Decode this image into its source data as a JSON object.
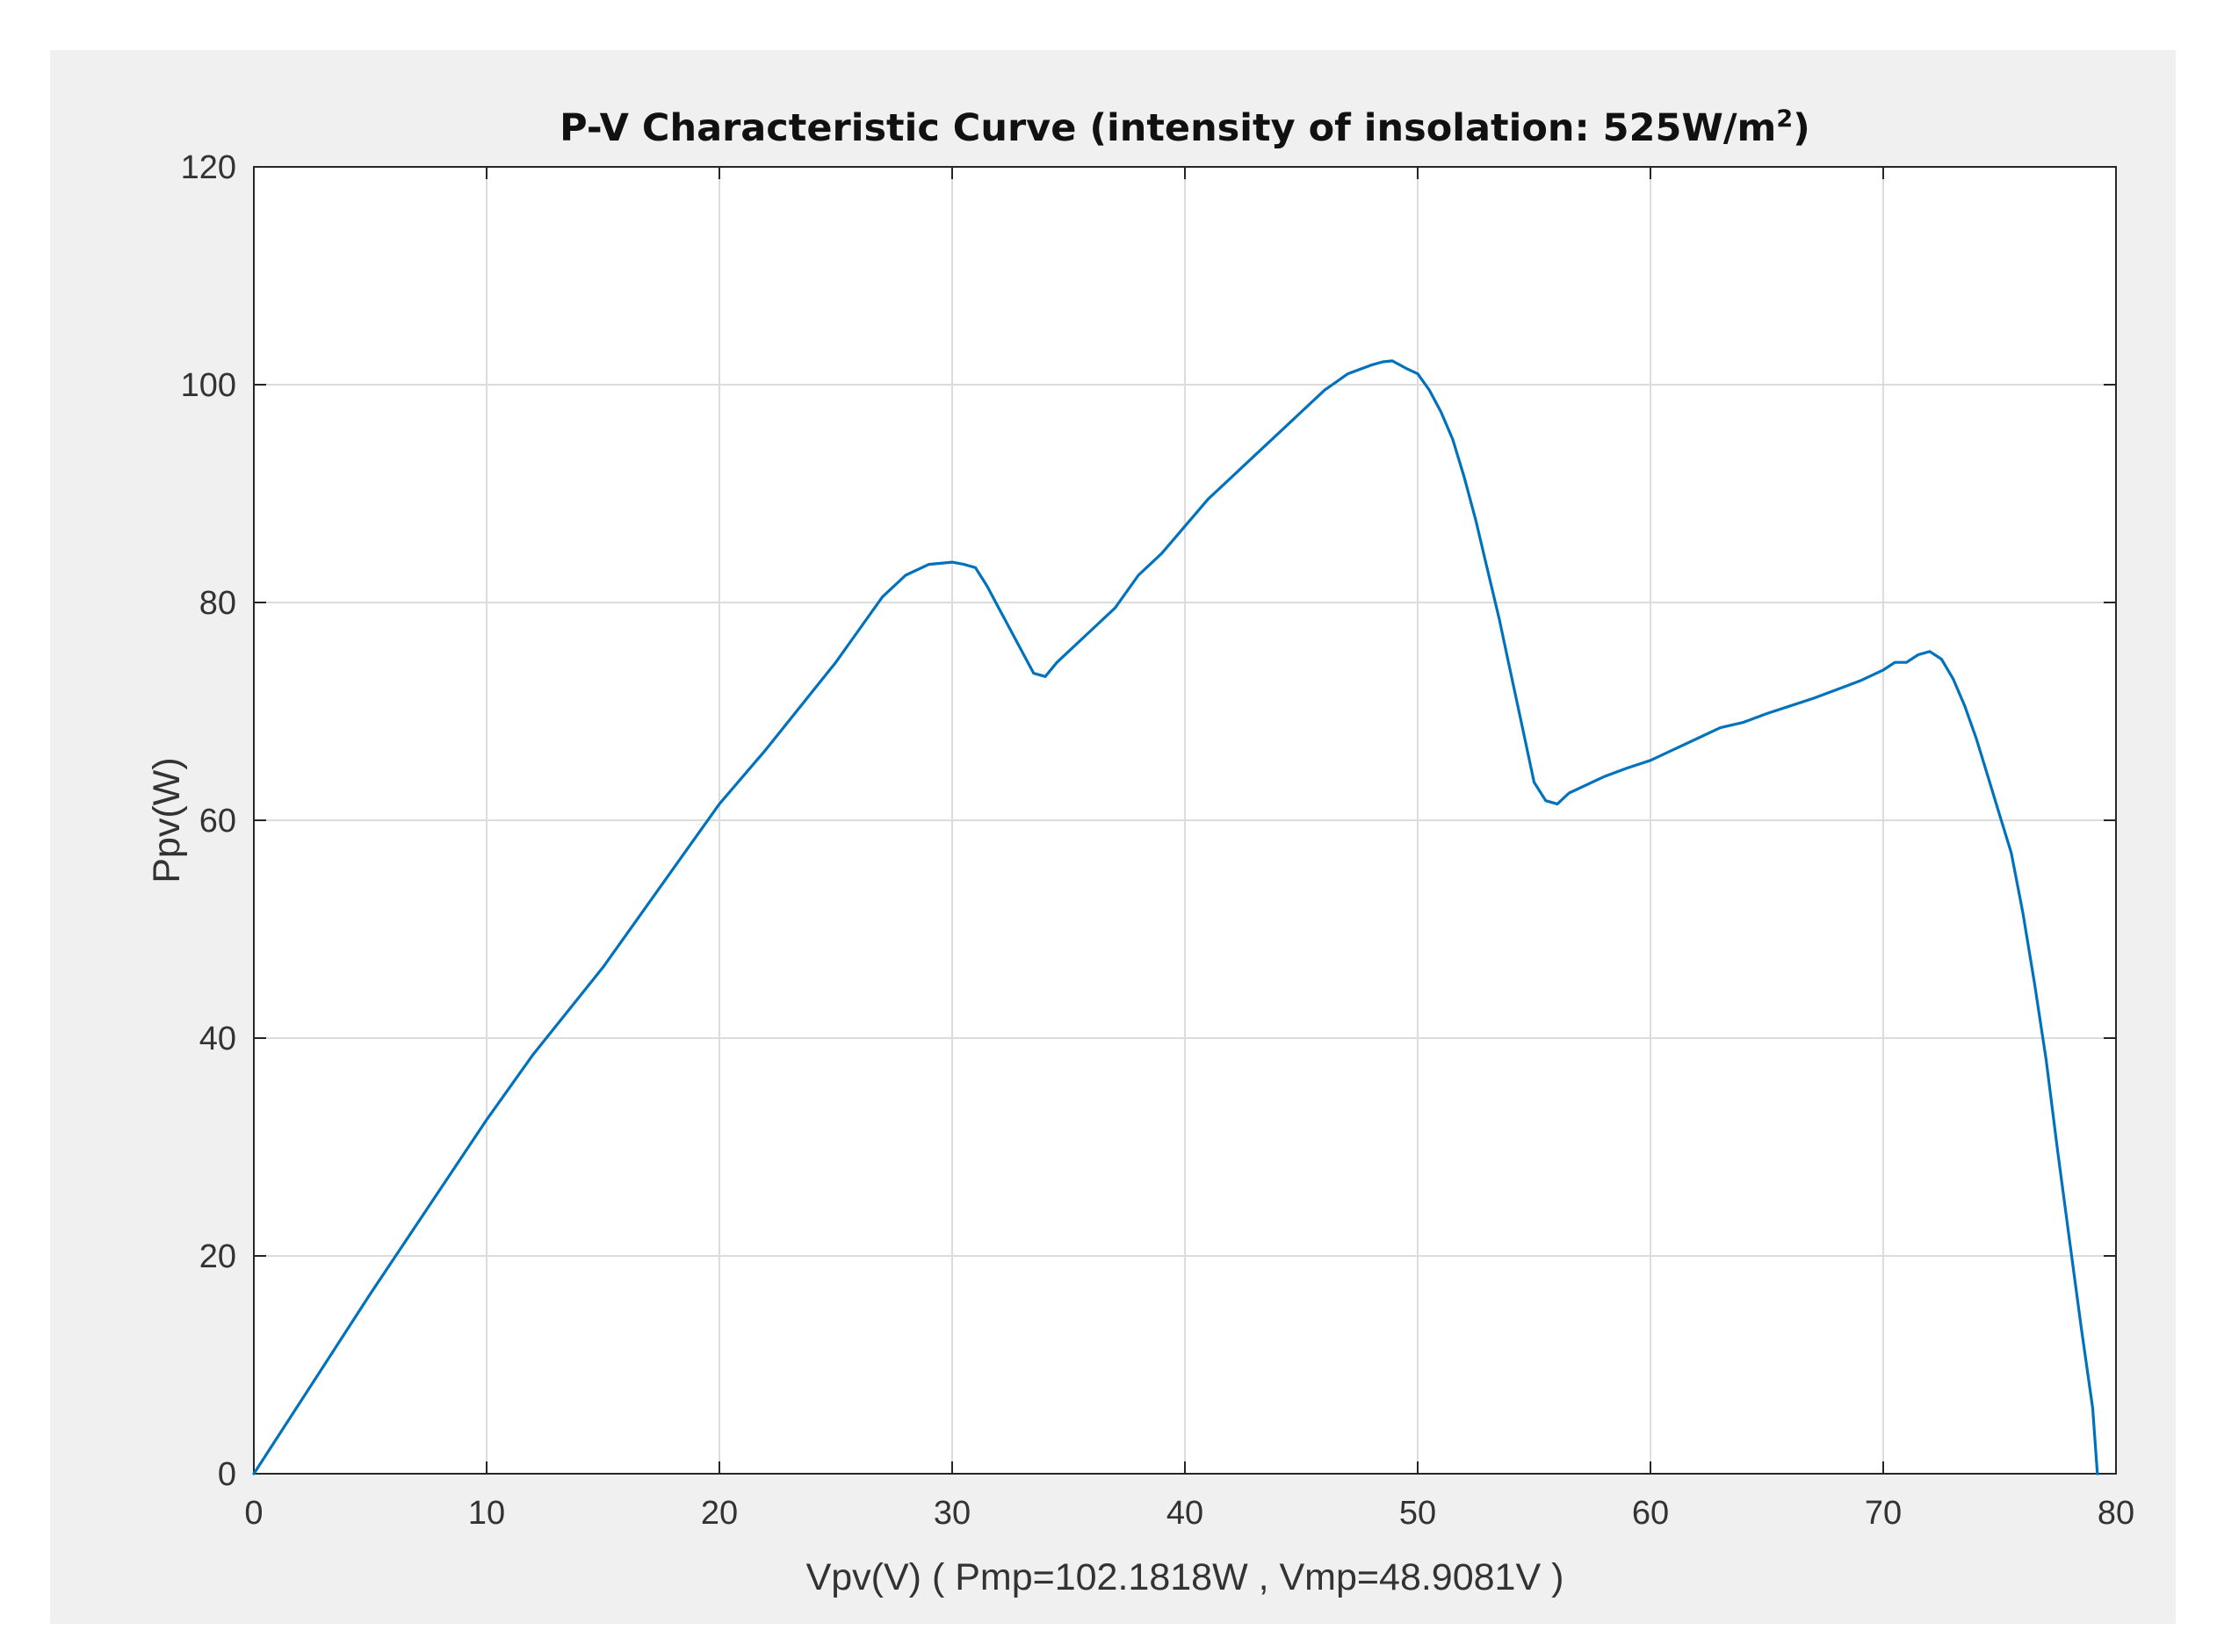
{
  "chart_data": {
    "type": "line",
    "title": "P-V Characteristic Curve (intensity of insolation: 525W/m",
    "title_superscript": "2",
    "title_close": ")",
    "xlabel": "Vpv(V) ( Pmp=102.1818W , Vmp=48.9081V )",
    "ylabel": "Ppv(W)",
    "xlim": [
      0,
      80
    ],
    "ylim": [
      0,
      120
    ],
    "xticks": [
      0,
      10,
      20,
      30,
      40,
      50,
      60,
      70,
      80
    ],
    "yticks": [
      0,
      20,
      40,
      60,
      80,
      100,
      120
    ],
    "xtick_labels": [
      "0",
      "10",
      "20",
      "30",
      "40",
      "50",
      "60",
      "70",
      "80"
    ],
    "ytick_labels": [
      "0",
      "20",
      "40",
      "60",
      "80",
      "100",
      "120"
    ],
    "grid": true,
    "line_color": "#0072bd",
    "series": [
      {
        "name": "Ppv",
        "x": [
          0,
          5,
          10,
          12,
          15,
          19,
          20,
          22,
          25,
          26,
          27,
          28,
          29,
          30,
          30.5,
          31,
          31.5,
          32,
          32.5,
          33,
          33.5,
          34,
          34.5,
          35,
          36,
          37,
          38,
          39,
          40,
          41,
          42,
          43,
          44,
          45,
          46,
          47,
          48,
          48.5,
          48.9081,
          49.5,
          50,
          50.5,
          51,
          51.5,
          52,
          52.5,
          53,
          53.5,
          54,
          54.5,
          55,
          55.5,
          56,
          56.5,
          57,
          58,
          59,
          60,
          61,
          62,
          63,
          64,
          65,
          66,
          67,
          68,
          69,
          70,
          70.5,
          71,
          71.5,
          72,
          72.5,
          73,
          73.5,
          74,
          74.5,
          75,
          75.5,
          76,
          76.5,
          77,
          77.5,
          78,
          78.5,
          79,
          79.2
        ],
        "y": [
          0,
          16.5,
          32.5,
          38.5,
          46.5,
          58.5,
          61.5,
          66.5,
          74.5,
          77.5,
          80.5,
          82.5,
          83.5,
          83.7,
          83.5,
          83.2,
          81.5,
          79.5,
          77.5,
          75.5,
          73.5,
          73.2,
          74.5,
          75.5,
          77.5,
          79.5,
          82.5,
          84.5,
          87,
          89.5,
          91.5,
          93.5,
          95.5,
          97.5,
          99.5,
          101,
          101.8,
          102.1,
          102.1818,
          101.5,
          101,
          99.5,
          97.5,
          95,
          91.5,
          87.5,
          83,
          78.5,
          73.5,
          68.5,
          63.5,
          61.8,
          61.5,
          62.5,
          63,
          64,
          64.8,
          65.5,
          66.5,
          67.5,
          68.5,
          69,
          69.8,
          70.5,
          71.2,
          72,
          72.8,
          73.8,
          74.5,
          74.5,
          75.2,
          75.5,
          74.8,
          73,
          70.5,
          67.5,
          64,
          60.5,
          57,
          51.5,
          45,
          38,
          29.5,
          21.5,
          13.5,
          6,
          0
        ]
      }
    ]
  }
}
